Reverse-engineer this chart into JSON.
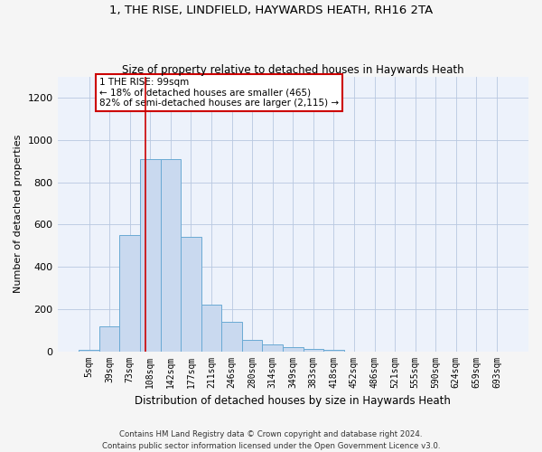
{
  "title_line1": "1, THE RISE, LINDFIELD, HAYWARDS HEATH, RH16 2TA",
  "title_line2": "Size of property relative to detached houses in Haywards Heath",
  "xlabel": "Distribution of detached houses by size in Haywards Heath",
  "ylabel": "Number of detached properties",
  "bar_color": "#c9d9ef",
  "bar_edge_color": "#6aaad4",
  "background_color": "#edf2fb",
  "categories": [
    "5sqm",
    "39sqm",
    "73sqm",
    "108sqm",
    "142sqm",
    "177sqm",
    "211sqm",
    "246sqm",
    "280sqm",
    "314sqm",
    "349sqm",
    "383sqm",
    "418sqm",
    "452sqm",
    "486sqm",
    "521sqm",
    "555sqm",
    "590sqm",
    "624sqm",
    "659sqm",
    "693sqm"
  ],
  "values": [
    5,
    120,
    550,
    910,
    910,
    540,
    220,
    140,
    55,
    32,
    20,
    12,
    5,
    0,
    0,
    0,
    0,
    0,
    0,
    0,
    0
  ],
  "ylim": [
    0,
    1300
  ],
  "yticks": [
    0,
    200,
    400,
    600,
    800,
    1000,
    1200
  ],
  "property_line_x": 2.75,
  "annotation_text": "1 THE RISE: 99sqm\n← 18% of detached houses are smaller (465)\n82% of semi-detached houses are larger (2,115) →",
  "annotation_box_color": "#ffffff",
  "annotation_box_edgecolor": "#cc0000",
  "vline_color": "#cc0000",
  "footer_line1": "Contains HM Land Registry data © Crown copyright and database right 2024.",
  "footer_line2": "Contains public sector information licensed under the Open Government Licence v3.0."
}
